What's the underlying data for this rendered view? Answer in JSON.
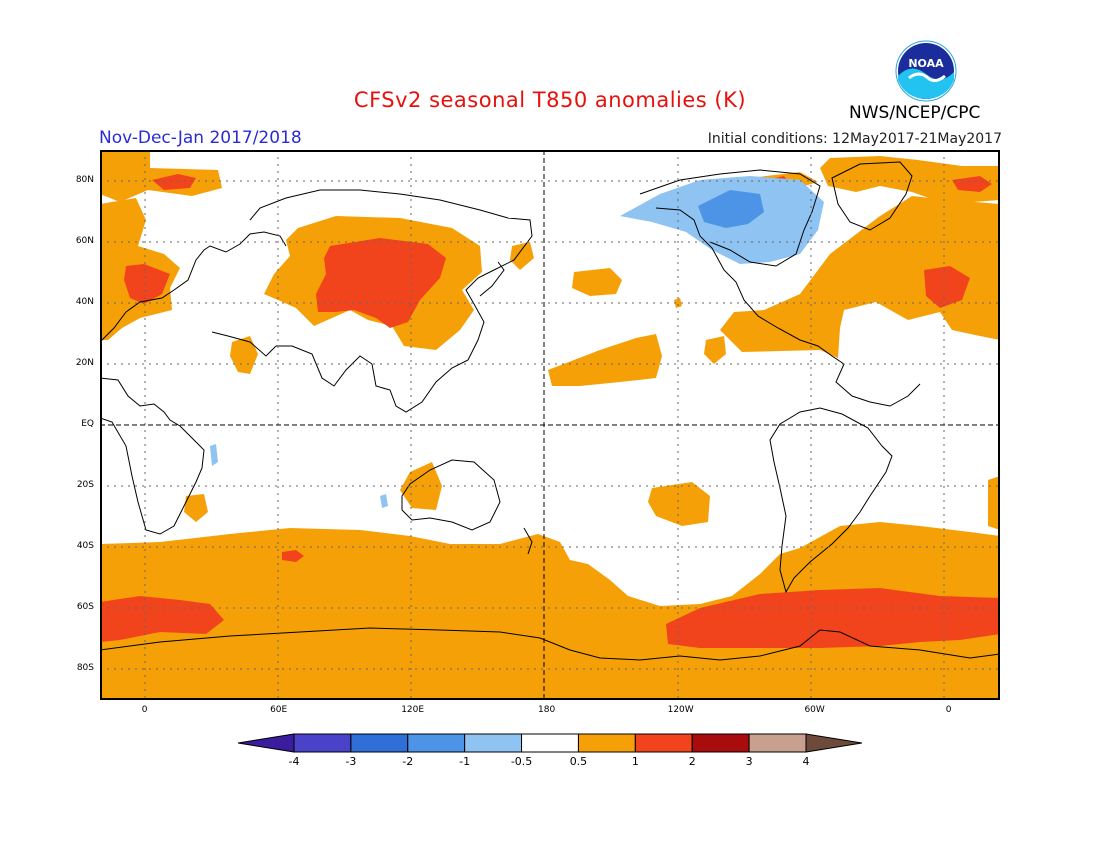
{
  "title": "CFSv2 seasonal T850 anomalies (K)",
  "period": "Nov-Dec-Jan 2017/2018",
  "initial_conditions": "Initial conditions: 12May2017-21May2017",
  "agency": "NWS/NCEP/CPC",
  "logo_text": "NOAA",
  "lat_ticks": [
    {
      "label": "80N",
      "lat": 80
    },
    {
      "label": "60N",
      "lat": 60
    },
    {
      "label": "40N",
      "lat": 40
    },
    {
      "label": "20N",
      "lat": 20
    },
    {
      "label": "EQ",
      "lat": 0
    },
    {
      "label": "20S",
      "lat": -20
    },
    {
      "label": "40S",
      "lat": -40
    },
    {
      "label": "60S",
      "lat": -60
    },
    {
      "label": "80S",
      "lat": -80
    }
  ],
  "lon_ticks": [
    {
      "label": "0",
      "lon": 0
    },
    {
      "label": "60E",
      "lon": 60
    },
    {
      "label": "120E",
      "lon": 120
    },
    {
      "label": "180",
      "lon": 180
    },
    {
      "label": "120W",
      "lon": 240
    },
    {
      "label": "60W",
      "lon": 300
    },
    {
      "label": "0",
      "lon": 360
    }
  ],
  "colorbar": {
    "labels": [
      "-4",
      "-3",
      "-2",
      "-1",
      "-0.5",
      "0.5",
      "1",
      "2",
      "3",
      "4"
    ],
    "colors": [
      "#3a1c9e",
      "#4a43c9",
      "#2f6fd6",
      "#4d93e6",
      "#8fc3f2",
      "#ffffff",
      "#f6a008",
      "#f2441c",
      "#a80c0c",
      "#c8a090",
      "#6e4a3a"
    ]
  },
  "colors": {
    "light_warm": "#f6a008",
    "warm": "#f2441c",
    "cool": "#8fc3f2",
    "mid_cool": "#4d93e6"
  }
}
